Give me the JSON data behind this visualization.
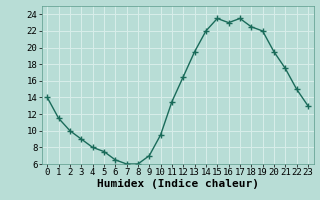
{
  "x": [
    0,
    1,
    2,
    3,
    4,
    5,
    6,
    7,
    8,
    9,
    10,
    11,
    12,
    13,
    14,
    15,
    16,
    17,
    18,
    19,
    20,
    21,
    22,
    23
  ],
  "y": [
    14,
    11.5,
    10,
    9,
    8,
    7.5,
    6.5,
    6,
    6,
    7,
    9.5,
    13.5,
    16.5,
    19.5,
    22,
    23.5,
    23,
    23.5,
    22.5,
    22,
    19.5,
    17.5,
    15,
    13
  ],
  "line_color": "#1a6b5a",
  "bg_color": "#b8ddd6",
  "grid_color": "#d8eeea",
  "xlabel": "Humidex (Indice chaleur)",
  "ylim": [
    6,
    25
  ],
  "xlim": [
    -0.5,
    23.5
  ],
  "yticks": [
    6,
    8,
    10,
    12,
    14,
    16,
    18,
    20,
    22,
    24
  ],
  "xticks": [
    0,
    1,
    2,
    3,
    4,
    5,
    6,
    7,
    8,
    9,
    10,
    11,
    12,
    13,
    14,
    15,
    16,
    17,
    18,
    19,
    20,
    21,
    22,
    23
  ],
  "marker": "+",
  "marker_size": 4,
  "line_width": 1.0,
  "xlabel_fontsize": 8,
  "tick_fontsize": 6.5
}
